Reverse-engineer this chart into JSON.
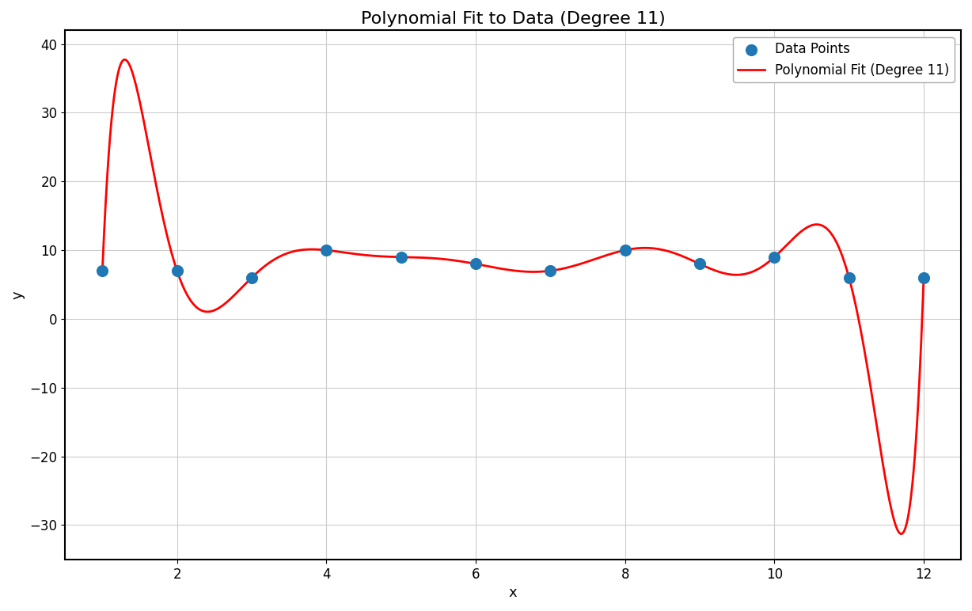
{
  "x_data": [
    1,
    2,
    3,
    4,
    5,
    6,
    7,
    8,
    9,
    10,
    11,
    12
  ],
  "y_data": [
    7,
    7,
    6,
    10,
    9,
    8,
    7,
    10,
    8,
    9,
    6,
    6
  ],
  "poly_degree": 11,
  "title": "Polynomial Fit to Data (Degree 11)",
  "xlabel": "x",
  "ylabel": "y",
  "xlim": [
    0.5,
    12.5
  ],
  "ylim": [
    -35,
    42
  ],
  "xticks": [
    2,
    4,
    6,
    8,
    10,
    12
  ],
  "yticks": [
    -30,
    -20,
    -10,
    0,
    10,
    20,
    30,
    40
  ],
  "data_color": "#1f77b4",
  "data_markersize": 7,
  "data_label": "Data Points",
  "fit_color": "red",
  "fit_linewidth": 2,
  "fit_label": "Polynomial Fit (Degree 11)",
  "grid_color": "#cccccc",
  "background_color": "#ffffff",
  "title_fontsize": 16,
  "label_fontsize": 13,
  "tick_fontsize": 12,
  "legend_fontsize": 12,
  "figsize": [
    12.28,
    7.72
  ],
  "dpi": 100
}
